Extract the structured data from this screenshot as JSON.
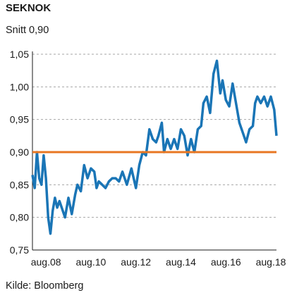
{
  "chart_data": {
    "type": "line",
    "title": "SEKNOK",
    "subtitle": "Snitt 0,90",
    "source": "Kilde: Bloomberg",
    "ylim": [
      0.75,
      1.05
    ],
    "yticks": [
      0.75,
      0.8,
      0.85,
      0.9,
      0.95,
      1.0,
      1.05
    ],
    "ytick_labels": [
      "0,75",
      "0,80",
      "0,85",
      "0,90",
      "0,95",
      "1,00",
      "1,05"
    ],
    "xlim": [
      2008.0,
      2018.85
    ],
    "xticks": [
      2008.6,
      2010.6,
      2012.6,
      2014.6,
      2016.6,
      2018.6
    ],
    "xtick_labels": [
      "aug.08",
      "aug.10",
      "aug.12",
      "aug.14",
      "aug.16",
      "aug.18"
    ],
    "grid": "horizontal dashed",
    "series": [
      {
        "color": "#1a75b6",
        "x": [
          2008.0,
          2008.1,
          2008.2,
          2008.3,
          2008.4,
          2008.5,
          2008.6,
          2008.7,
          2008.8,
          2008.9,
          2009.0,
          2009.1,
          2009.2,
          2009.3,
          2009.45,
          2009.6,
          2009.75,
          2009.9,
          2010.0,
          2010.15,
          2010.3,
          2010.45,
          2010.6,
          2010.75,
          2010.85,
          2010.95,
          2011.1,
          2011.25,
          2011.4,
          2011.55,
          2011.7,
          2011.85,
          2012.0,
          2012.2,
          2012.4,
          2012.6,
          2012.75,
          2012.9,
          2013.05,
          2013.2,
          2013.35,
          2013.5,
          2013.6,
          2013.75,
          2013.85,
          2014.0,
          2014.15,
          2014.3,
          2014.45,
          2014.6,
          2014.75,
          2014.9,
          2015.05,
          2015.2,
          2015.35,
          2015.5,
          2015.6,
          2015.75,
          2015.9,
          2016.05,
          2016.2,
          2016.35,
          2016.45,
          2016.6,
          2016.75,
          2016.9,
          2017.05,
          2017.2,
          2017.35,
          2017.5,
          2017.65,
          2017.8,
          2017.9,
          2018.0,
          2018.15,
          2018.3,
          2018.45,
          2018.6,
          2018.75,
          2018.85
        ],
        "y": [
          0.865,
          0.845,
          0.9,
          0.86,
          0.85,
          0.895,
          0.86,
          0.8,
          0.775,
          0.81,
          0.83,
          0.815,
          0.825,
          0.815,
          0.8,
          0.83,
          0.805,
          0.835,
          0.85,
          0.84,
          0.88,
          0.86,
          0.875,
          0.87,
          0.845,
          0.855,
          0.85,
          0.845,
          0.855,
          0.86,
          0.86,
          0.855,
          0.87,
          0.85,
          0.875,
          0.845,
          0.88,
          0.9,
          0.895,
          0.935,
          0.92,
          0.915,
          0.925,
          0.945,
          0.9,
          0.92,
          0.905,
          0.92,
          0.905,
          0.935,
          0.925,
          0.895,
          0.92,
          0.9,
          0.935,
          0.94,
          0.975,
          0.985,
          0.96,
          1.02,
          1.04,
          0.99,
          1.01,
          0.98,
          0.97,
          1.005,
          0.975,
          0.945,
          0.93,
          0.915,
          0.935,
          0.94,
          0.975,
          0.985,
          0.975,
          0.985,
          0.97,
          0.985,
          0.965,
          0.925
        ]
      },
      {
        "color": "#e87722",
        "x": [
          2008.0,
          2018.85
        ],
        "y": [
          0.9,
          0.9
        ]
      }
    ]
  }
}
